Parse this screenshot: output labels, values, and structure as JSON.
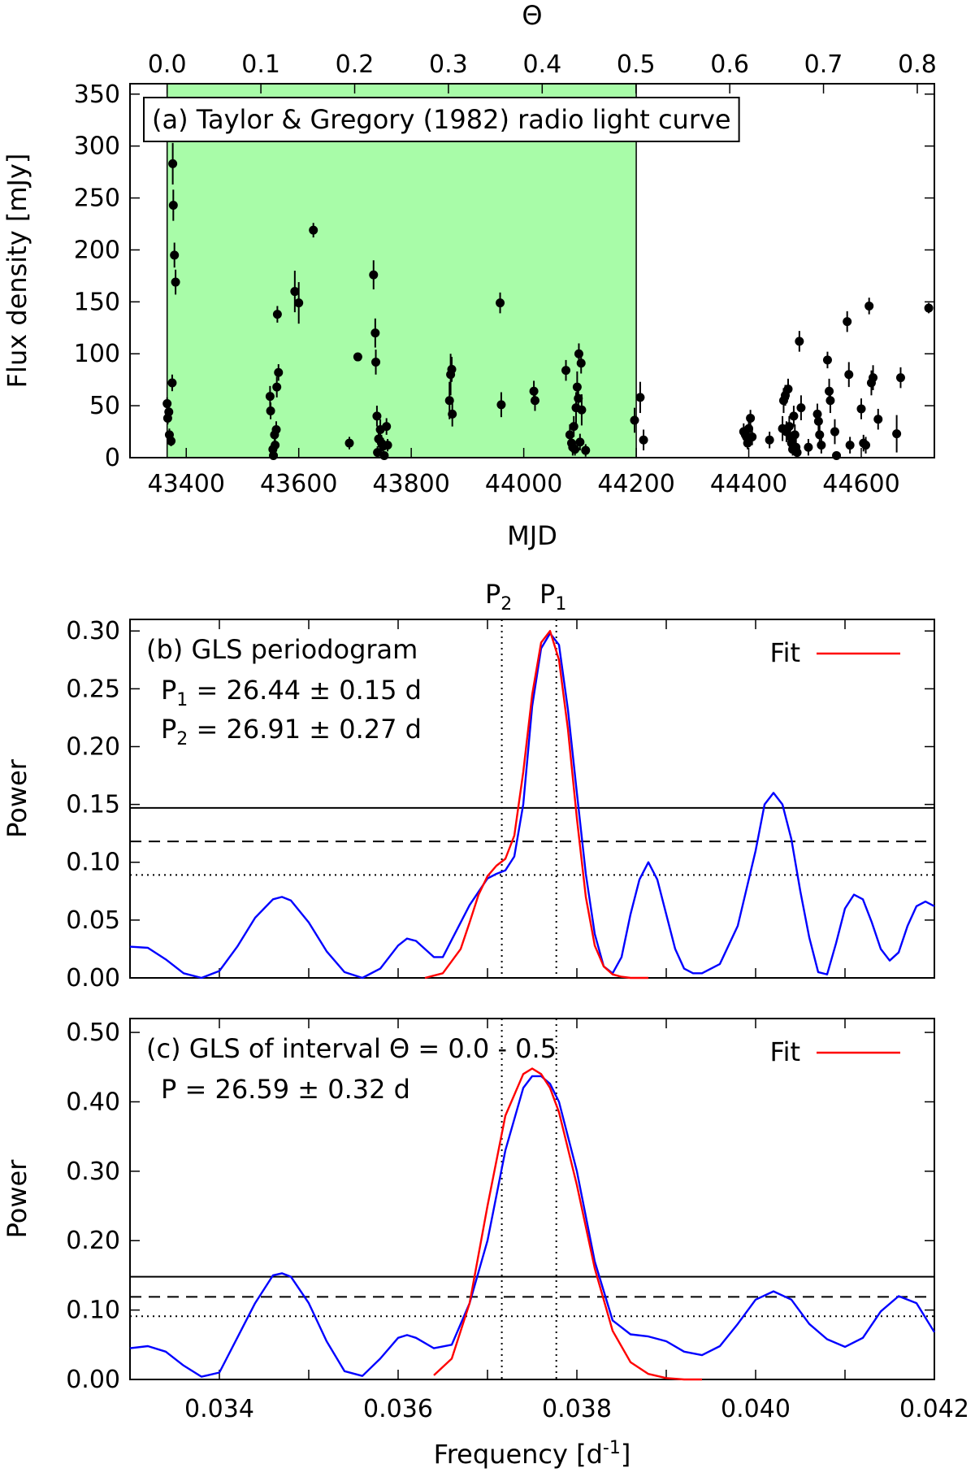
{
  "chart_data": [
    {
      "id": "a",
      "type": "scatter",
      "label": "(a) Taylor & Gregory (1982) radio light curve",
      "xlabel": "MJD",
      "ylabel": "Flux density [mJy]",
      "x2label": "Θ",
      "xlim": [
        43300,
        44730
      ],
      "ylim": [
        0,
        360
      ],
      "x_ticks": [
        "43400",
        "43600",
        "43800",
        "44000",
        "44200",
        "44400",
        "44600"
      ],
      "y_ticks": [
        "0",
        "50",
        "100",
        "150",
        "200",
        "250",
        "300",
        "350"
      ],
      "x2_ticks": [
        "0.0",
        "0.1",
        "0.2",
        "0.3",
        "0.4",
        "0.5",
        "0.6",
        "0.7",
        "0.8"
      ],
      "phase_zero_mjd": 43366,
      "period_days": 1667,
      "shaded_interval_mjd": [
        43366,
        44200
      ],
      "shade_color": "#a8fca8",
      "points": [
        {
          "x": 43366,
          "y": 52,
          "e": 6
        },
        {
          "x": 43367,
          "y": 38,
          "e": 6
        },
        {
          "x": 43369,
          "y": 44,
          "e": 5
        },
        {
          "x": 43370,
          "y": 22,
          "e": 6
        },
        {
          "x": 43373,
          "y": 16,
          "e": 5
        },
        {
          "x": 43375,
          "y": 72,
          "e": 8
        },
        {
          "x": 43376,
          "y": 283,
          "e": 20
        },
        {
          "x": 43377,
          "y": 243,
          "e": 15
        },
        {
          "x": 43379,
          "y": 195,
          "e": 12
        },
        {
          "x": 43381,
          "y": 169,
          "e": 12
        },
        {
          "x": 43549,
          "y": 59,
          "e": 10
        },
        {
          "x": 43550,
          "y": 45,
          "e": 8
        },
        {
          "x": 43554,
          "y": 8,
          "e": 6
        },
        {
          "x": 43555,
          "y": 2,
          "e": 4
        },
        {
          "x": 43557,
          "y": 22,
          "e": 8
        },
        {
          "x": 43558,
          "y": 12,
          "e": 6
        },
        {
          "x": 43560,
          "y": 27,
          "e": 8
        },
        {
          "x": 43561,
          "y": 68,
          "e": 10
        },
        {
          "x": 43562,
          "y": 138,
          "e": 8
        },
        {
          "x": 43564,
          "y": 82,
          "e": 8
        },
        {
          "x": 43593,
          "y": 160,
          "e": 20
        },
        {
          "x": 43600,
          "y": 149,
          "e": 20
        },
        {
          "x": 43626,
          "y": 219,
          "e": 7
        },
        {
          "x": 43690,
          "y": 14,
          "e": 6
        },
        {
          "x": 43705,
          "y": 97,
          "e": 4
        },
        {
          "x": 43733,
          "y": 176,
          "e": 14
        },
        {
          "x": 43736,
          "y": 120,
          "e": 14
        },
        {
          "x": 43737,
          "y": 92,
          "e": 12
        },
        {
          "x": 43739,
          "y": 40,
          "e": 10
        },
        {
          "x": 43740,
          "y": 5,
          "e": 6
        },
        {
          "x": 43742,
          "y": 18,
          "e": 8
        },
        {
          "x": 43745,
          "y": 27,
          "e": 10
        },
        {
          "x": 43747,
          "y": 14,
          "e": 8
        },
        {
          "x": 43750,
          "y": 11,
          "e": 8
        },
        {
          "x": 43752,
          "y": 2,
          "e": 4
        },
        {
          "x": 43756,
          "y": 30,
          "e": 8
        },
        {
          "x": 43758,
          "y": 12,
          "e": 6
        },
        {
          "x": 43868,
          "y": 55,
          "e": 18
        },
        {
          "x": 43870,
          "y": 80,
          "e": 20
        },
        {
          "x": 43872,
          "y": 85,
          "e": 12
        },
        {
          "x": 43873,
          "y": 42,
          "e": 12
        },
        {
          "x": 43958,
          "y": 149,
          "e": 10
        },
        {
          "x": 43960,
          "y": 51,
          "e": 12
        },
        {
          "x": 44018,
          "y": 64,
          "e": 10
        },
        {
          "x": 44020,
          "y": 55,
          "e": 10
        },
        {
          "x": 44075,
          "y": 84,
          "e": 10
        },
        {
          "x": 44082,
          "y": 22,
          "e": 10
        },
        {
          "x": 44085,
          "y": 14,
          "e": 8
        },
        {
          "x": 44087,
          "y": 10,
          "e": 8
        },
        {
          "x": 44089,
          "y": 30,
          "e": 10
        },
        {
          "x": 44091,
          "y": 8,
          "e": 6
        },
        {
          "x": 44093,
          "y": 48,
          "e": 15
        },
        {
          "x": 44095,
          "y": 68,
          "e": 15
        },
        {
          "x": 44097,
          "y": 57,
          "e": 12
        },
        {
          "x": 44098,
          "y": 100,
          "e": 10
        },
        {
          "x": 44100,
          "y": 15,
          "e": 8
        },
        {
          "x": 44102,
          "y": 91,
          "e": 10
        },
        {
          "x": 44103,
          "y": 46,
          "e": 15
        },
        {
          "x": 44110,
          "y": 7,
          "e": 6
        },
        {
          "x": 44197,
          "y": 36,
          "e": 12
        },
        {
          "x": 44207,
          "y": 58,
          "e": 15
        },
        {
          "x": 44213,
          "y": 17,
          "e": 10
        },
        {
          "x": 44391,
          "y": 25,
          "e": 8
        },
        {
          "x": 44394,
          "y": 22,
          "e": 8
        },
        {
          "x": 44396,
          "y": 20,
          "e": 8
        },
        {
          "x": 44398,
          "y": 14,
          "e": 6
        },
        {
          "x": 44400,
          "y": 28,
          "e": 10
        },
        {
          "x": 44403,
          "y": 38,
          "e": 8
        },
        {
          "x": 44406,
          "y": 20,
          "e": 8
        },
        {
          "x": 44437,
          "y": 17,
          "e": 8
        },
        {
          "x": 44460,
          "y": 28,
          "e": 12
        },
        {
          "x": 44462,
          "y": 55,
          "e": 12
        },
        {
          "x": 44465,
          "y": 60,
          "e": 10
        },
        {
          "x": 44467,
          "y": 25,
          "e": 10
        },
        {
          "x": 44470,
          "y": 66,
          "e": 10
        },
        {
          "x": 44472,
          "y": 30,
          "e": 10
        },
        {
          "x": 44474,
          "y": 20,
          "e": 10
        },
        {
          "x": 44476,
          "y": 14,
          "e": 8
        },
        {
          "x": 44478,
          "y": 8,
          "e": 6
        },
        {
          "x": 44480,
          "y": 40,
          "e": 10
        },
        {
          "x": 44482,
          "y": 22,
          "e": 10
        },
        {
          "x": 44484,
          "y": 10,
          "e": 8
        },
        {
          "x": 44486,
          "y": 5,
          "e": 5
        },
        {
          "x": 44490,
          "y": 112,
          "e": 10
        },
        {
          "x": 44493,
          "y": 48,
          "e": 12
        },
        {
          "x": 44506,
          "y": 10,
          "e": 8
        },
        {
          "x": 44522,
          "y": 42,
          "e": 10
        },
        {
          "x": 44524,
          "y": 35,
          "e": 10
        },
        {
          "x": 44526,
          "y": 22,
          "e": 10
        },
        {
          "x": 44529,
          "y": 12,
          "e": 8
        },
        {
          "x": 44540,
          "y": 94,
          "e": 8
        },
        {
          "x": 44543,
          "y": 64,
          "e": 12
        },
        {
          "x": 44545,
          "y": 55,
          "e": 12
        },
        {
          "x": 44553,
          "y": 25,
          "e": 12
        },
        {
          "x": 44556,
          "y": 2,
          "e": 4
        },
        {
          "x": 44575,
          "y": 131,
          "e": 10
        },
        {
          "x": 44578,
          "y": 80,
          "e": 12
        },
        {
          "x": 44580,
          "y": 12,
          "e": 8
        },
        {
          "x": 44600,
          "y": 47,
          "e": 10
        },
        {
          "x": 44604,
          "y": 14,
          "e": 8
        },
        {
          "x": 44608,
          "y": 12,
          "e": 8
        },
        {
          "x": 44614,
          "y": 146,
          "e": 8
        },
        {
          "x": 44618,
          "y": 72,
          "e": 12
        },
        {
          "x": 44621,
          "y": 77,
          "e": 12
        },
        {
          "x": 44630,
          "y": 37,
          "e": 10
        },
        {
          "x": 44663,
          "y": 23,
          "e": 18
        },
        {
          "x": 44670,
          "y": 77,
          "e": 10
        },
        {
          "x": 44720,
          "y": 144,
          "e": 5
        }
      ]
    },
    {
      "id": "b",
      "type": "line",
      "label": "(b) GLS periodogram",
      "annotations": [
        {
          "sym": "P",
          "sub": "1",
          "text": " = 26.44 ± 0.15 d"
        },
        {
          "sym": "P",
          "sub": "2",
          "text": " = 26.91 ± 0.27 d"
        }
      ],
      "legend": "Fit",
      "ylabel": "Power",
      "xlim": [
        0.033,
        0.042
      ],
      "ylim": [
        0,
        0.31
      ],
      "y_ticks": [
        "0.00",
        "0.05",
        "0.10",
        "0.15",
        "0.20",
        "0.25",
        "0.30"
      ],
      "top_labels": [
        {
          "sym": "P",
          "sub": "2",
          "x": 0.03716
        },
        {
          "sym": "P",
          "sub": "1",
          "x": 0.03777
        }
      ],
      "vlines": [
        0.03716,
        0.03777
      ],
      "hlines": [
        {
          "y": 0.147,
          "style": "solid"
        },
        {
          "y": 0.118,
          "style": "dashed"
        },
        {
          "y": 0.089,
          "style": "dotted"
        }
      ],
      "series": [
        {
          "name": "GLS",
          "color": "#0000ff",
          "x": [
            0.033,
            0.0332,
            0.0334,
            0.0336,
            0.0338,
            0.034,
            0.0342,
            0.0344,
            0.0346,
            0.0347,
            0.0348,
            0.035,
            0.0352,
            0.0354,
            0.0356,
            0.0358,
            0.036,
            0.0361,
            0.0362,
            0.0364,
            0.0365,
            0.0366,
            0.0368,
            0.037,
            0.0371,
            0.0372,
            0.0373,
            0.0374,
            0.0375,
            0.0376,
            0.0377,
            0.0378,
            0.0379,
            0.038,
            0.0381,
            0.0382,
            0.0383,
            0.0384,
            0.0385,
            0.0386,
            0.0387,
            0.0388,
            0.0389,
            0.039,
            0.0391,
            0.0392,
            0.0393,
            0.0394,
            0.0396,
            0.0398,
            0.04,
            0.0401,
            0.0402,
            0.0403,
            0.0404,
            0.0405,
            0.0406,
            0.0407,
            0.0408,
            0.0409,
            0.041,
            0.0411,
            0.0412,
            0.0413,
            0.0414,
            0.0415,
            0.0416,
            0.0417,
            0.0418,
            0.0419,
            0.042
          ],
          "y": [
            0.027,
            0.026,
            0.016,
            0.004,
            0.0,
            0.006,
            0.027,
            0.052,
            0.068,
            0.07,
            0.067,
            0.048,
            0.023,
            0.005,
            0.0,
            0.008,
            0.028,
            0.034,
            0.032,
            0.018,
            0.018,
            0.033,
            0.063,
            0.086,
            0.09,
            0.093,
            0.105,
            0.15,
            0.235,
            0.285,
            0.298,
            0.288,
            0.232,
            0.16,
            0.09,
            0.038,
            0.01,
            0.004,
            0.018,
            0.055,
            0.085,
            0.1,
            0.085,
            0.055,
            0.025,
            0.008,
            0.004,
            0.004,
            0.012,
            0.045,
            0.11,
            0.15,
            0.16,
            0.15,
            0.12,
            0.075,
            0.035,
            0.005,
            0.003,
            0.03,
            0.06,
            0.072,
            0.068,
            0.048,
            0.025,
            0.015,
            0.022,
            0.045,
            0.062,
            0.066,
            0.062
          ]
        },
        {
          "name": "Fit",
          "color": "#ff0000",
          "x": [
            0.0363,
            0.0365,
            0.0367,
            0.0368,
            0.0369,
            0.037,
            0.0371,
            0.0372,
            0.0373,
            0.0374,
            0.0375,
            0.0376,
            0.0377,
            0.0378,
            0.0379,
            0.038,
            0.0381,
            0.0382,
            0.0383,
            0.0384,
            0.0385,
            0.0386,
            0.0387,
            0.0388
          ],
          "y": [
            0.0,
            0.004,
            0.025,
            0.048,
            0.072,
            0.088,
            0.097,
            0.103,
            0.123,
            0.178,
            0.245,
            0.29,
            0.3,
            0.275,
            0.215,
            0.138,
            0.07,
            0.028,
            0.01,
            0.003,
            0.001,
            0.0,
            0.0,
            0.0
          ]
        }
      ]
    },
    {
      "id": "c",
      "type": "line",
      "label": "(c) GLS of interval Θ = 0.0 - 0.5",
      "annotation": "P = 26.59 ± 0.32 d",
      "legend": "Fit",
      "ylabel": "Power",
      "xlabel_main": "Frequency [d",
      "xlabel_sup": "-1",
      "xlabel_end": "]",
      "xlim": [
        0.033,
        0.042
      ],
      "ylim": [
        0,
        0.52
      ],
      "x_ticks": [
        "0.034",
        "0.036",
        "0.038",
        "0.040",
        "0.042"
      ],
      "y_ticks": [
        "0.00",
        "0.10",
        "0.20",
        "0.30",
        "0.40",
        "0.50"
      ],
      "vlines": [
        0.03716,
        0.03777
      ],
      "hlines": [
        {
          "y": 0.148,
          "style": "solid"
        },
        {
          "y": 0.119,
          "style": "dashed"
        },
        {
          "y": 0.091,
          "style": "dotted"
        }
      ],
      "series": [
        {
          "name": "GLS",
          "color": "#0000ff",
          "x": [
            0.033,
            0.0332,
            0.0334,
            0.0336,
            0.0338,
            0.034,
            0.0342,
            0.0344,
            0.0346,
            0.0347,
            0.0348,
            0.035,
            0.0352,
            0.0354,
            0.0356,
            0.0358,
            0.036,
            0.0361,
            0.0362,
            0.0364,
            0.0366,
            0.0368,
            0.037,
            0.0372,
            0.0374,
            0.0375,
            0.0376,
            0.0377,
            0.0378,
            0.038,
            0.0382,
            0.0384,
            0.0386,
            0.0388,
            0.039,
            0.0392,
            0.0394,
            0.0396,
            0.0398,
            0.04,
            0.0402,
            0.0404,
            0.0406,
            0.0408,
            0.041,
            0.0412,
            0.0414,
            0.0416,
            0.0418,
            0.042
          ],
          "y": [
            0.045,
            0.048,
            0.04,
            0.02,
            0.004,
            0.01,
            0.06,
            0.11,
            0.15,
            0.153,
            0.148,
            0.11,
            0.055,
            0.012,
            0.005,
            0.03,
            0.06,
            0.064,
            0.06,
            0.045,
            0.05,
            0.11,
            0.2,
            0.33,
            0.42,
            0.437,
            0.437,
            0.426,
            0.4,
            0.3,
            0.17,
            0.085,
            0.065,
            0.062,
            0.055,
            0.04,
            0.035,
            0.048,
            0.08,
            0.115,
            0.127,
            0.115,
            0.08,
            0.058,
            0.047,
            0.06,
            0.098,
            0.12,
            0.11,
            0.068
          ]
        },
        {
          "name": "Fit",
          "color": "#ff0000",
          "x": [
            0.0364,
            0.0366,
            0.0368,
            0.037,
            0.0372,
            0.0374,
            0.0375,
            0.0376,
            0.0377,
            0.0378,
            0.038,
            0.0382,
            0.0384,
            0.0386,
            0.0388,
            0.039,
            0.0392,
            0.0394
          ],
          "y": [
            0.006,
            0.03,
            0.11,
            0.25,
            0.38,
            0.44,
            0.448,
            0.44,
            0.42,
            0.385,
            0.28,
            0.16,
            0.07,
            0.025,
            0.008,
            0.002,
            0.0,
            0.0
          ]
        }
      ]
    }
  ]
}
